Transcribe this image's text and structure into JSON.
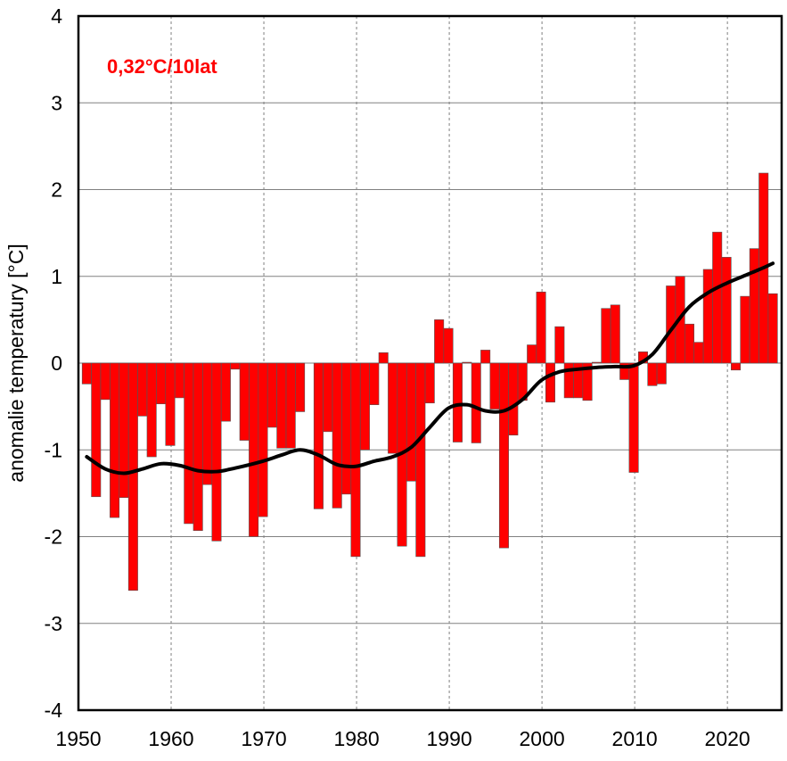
{
  "chart_data": {
    "type": "bar",
    "title": "",
    "annotation": "0,32°C/10lat",
    "xlabel": "",
    "ylabel": "anomalie temperatury [°C]",
    "xlim": [
      1950,
      2025.85
    ],
    "ylim": [
      -4,
      4
    ],
    "xticks": [
      1950,
      1960,
      1970,
      1980,
      1990,
      2000,
      2010,
      2020
    ],
    "yticks": [
      -4,
      -3,
      -2,
      -1,
      0,
      1,
      2,
      3,
      4
    ],
    "grid": {
      "y": "solid",
      "x": "dotted"
    },
    "colors": {
      "bars": "#ff0000",
      "trend": "#000000",
      "annotation": "#ff0000"
    },
    "years": [
      1951,
      1952,
      1953,
      1954,
      1955,
      1956,
      1957,
      1958,
      1959,
      1960,
      1961,
      1962,
      1963,
      1964,
      1965,
      1966,
      1967,
      1968,
      1969,
      1970,
      1971,
      1972,
      1973,
      1974,
      1975,
      1976,
      1977,
      1978,
      1979,
      1980,
      1981,
      1982,
      1983,
      1984,
      1985,
      1986,
      1987,
      1988,
      1989,
      1990,
      1991,
      1992,
      1993,
      1994,
      1995,
      1996,
      1997,
      1998,
      1999,
      2000,
      2001,
      2002,
      2003,
      2004,
      2005,
      2006,
      2007,
      2008,
      2009,
      2010,
      2011,
      2012,
      2013,
      2014,
      2015,
      2016,
      2017,
      2018,
      2019,
      2020,
      2021,
      2022,
      2023,
      2024,
      2025
    ],
    "values": [
      -0.24,
      -1.54,
      -0.42,
      -1.78,
      -1.55,
      -2.62,
      -0.61,
      -1.08,
      -0.47,
      -0.95,
      -0.4,
      -1.85,
      -1.93,
      -1.4,
      -2.05,
      -0.67,
      -0.07,
      -0.89,
      -2.0,
      -1.77,
      -0.74,
      -0.98,
      -0.98,
      -0.56,
      0.0,
      -1.68,
      -0.79,
      -1.67,
      -1.51,
      -2.23,
      -1.0,
      -0.48,
      0.12,
      -1.04,
      -2.11,
      -1.36,
      -2.23,
      -0.46,
      0.5,
      0.4,
      -0.91,
      0.01,
      -0.92,
      0.15,
      -0.53,
      -2.13,
      -0.83,
      -0.43,
      0.21,
      0.82,
      -0.45,
      0.42,
      -0.4,
      -0.4,
      -0.43,
      0.01,
      0.63,
      0.67,
      -0.19,
      -1.26,
      0.13,
      -0.26,
      -0.24,
      0.89,
      1.0,
      0.45,
      0.24,
      1.08,
      1.51,
      1.22,
      -0.08,
      0.77,
      1.32,
      2.19,
      0.8
    ],
    "trend": {
      "x": [
        1951,
        1953,
        1955,
        1957,
        1959,
        1961,
        1963,
        1965,
        1967,
        1970,
        1972,
        1974,
        1976,
        1978,
        1980,
        1982,
        1984,
        1986,
        1988,
        1990,
        1992,
        1994,
        1996,
        1998,
        2000,
        2002,
        2004,
        2006,
        2008,
        2010,
        2012,
        2014,
        2016,
        2018,
        2020,
        2022,
        2024,
        2025
      ],
      "y": [
        -1.08,
        -1.22,
        -1.27,
        -1.22,
        -1.16,
        -1.18,
        -1.24,
        -1.25,
        -1.21,
        -1.13,
        -1.06,
        -1.0,
        -1.06,
        -1.17,
        -1.19,
        -1.13,
        -1.08,
        -0.97,
        -0.74,
        -0.52,
        -0.48,
        -0.55,
        -0.55,
        -0.42,
        -0.2,
        -0.1,
        -0.07,
        -0.05,
        -0.04,
        -0.03,
        0.1,
        0.38,
        0.65,
        0.81,
        0.92,
        1.01,
        1.1,
        1.15
      ]
    }
  }
}
